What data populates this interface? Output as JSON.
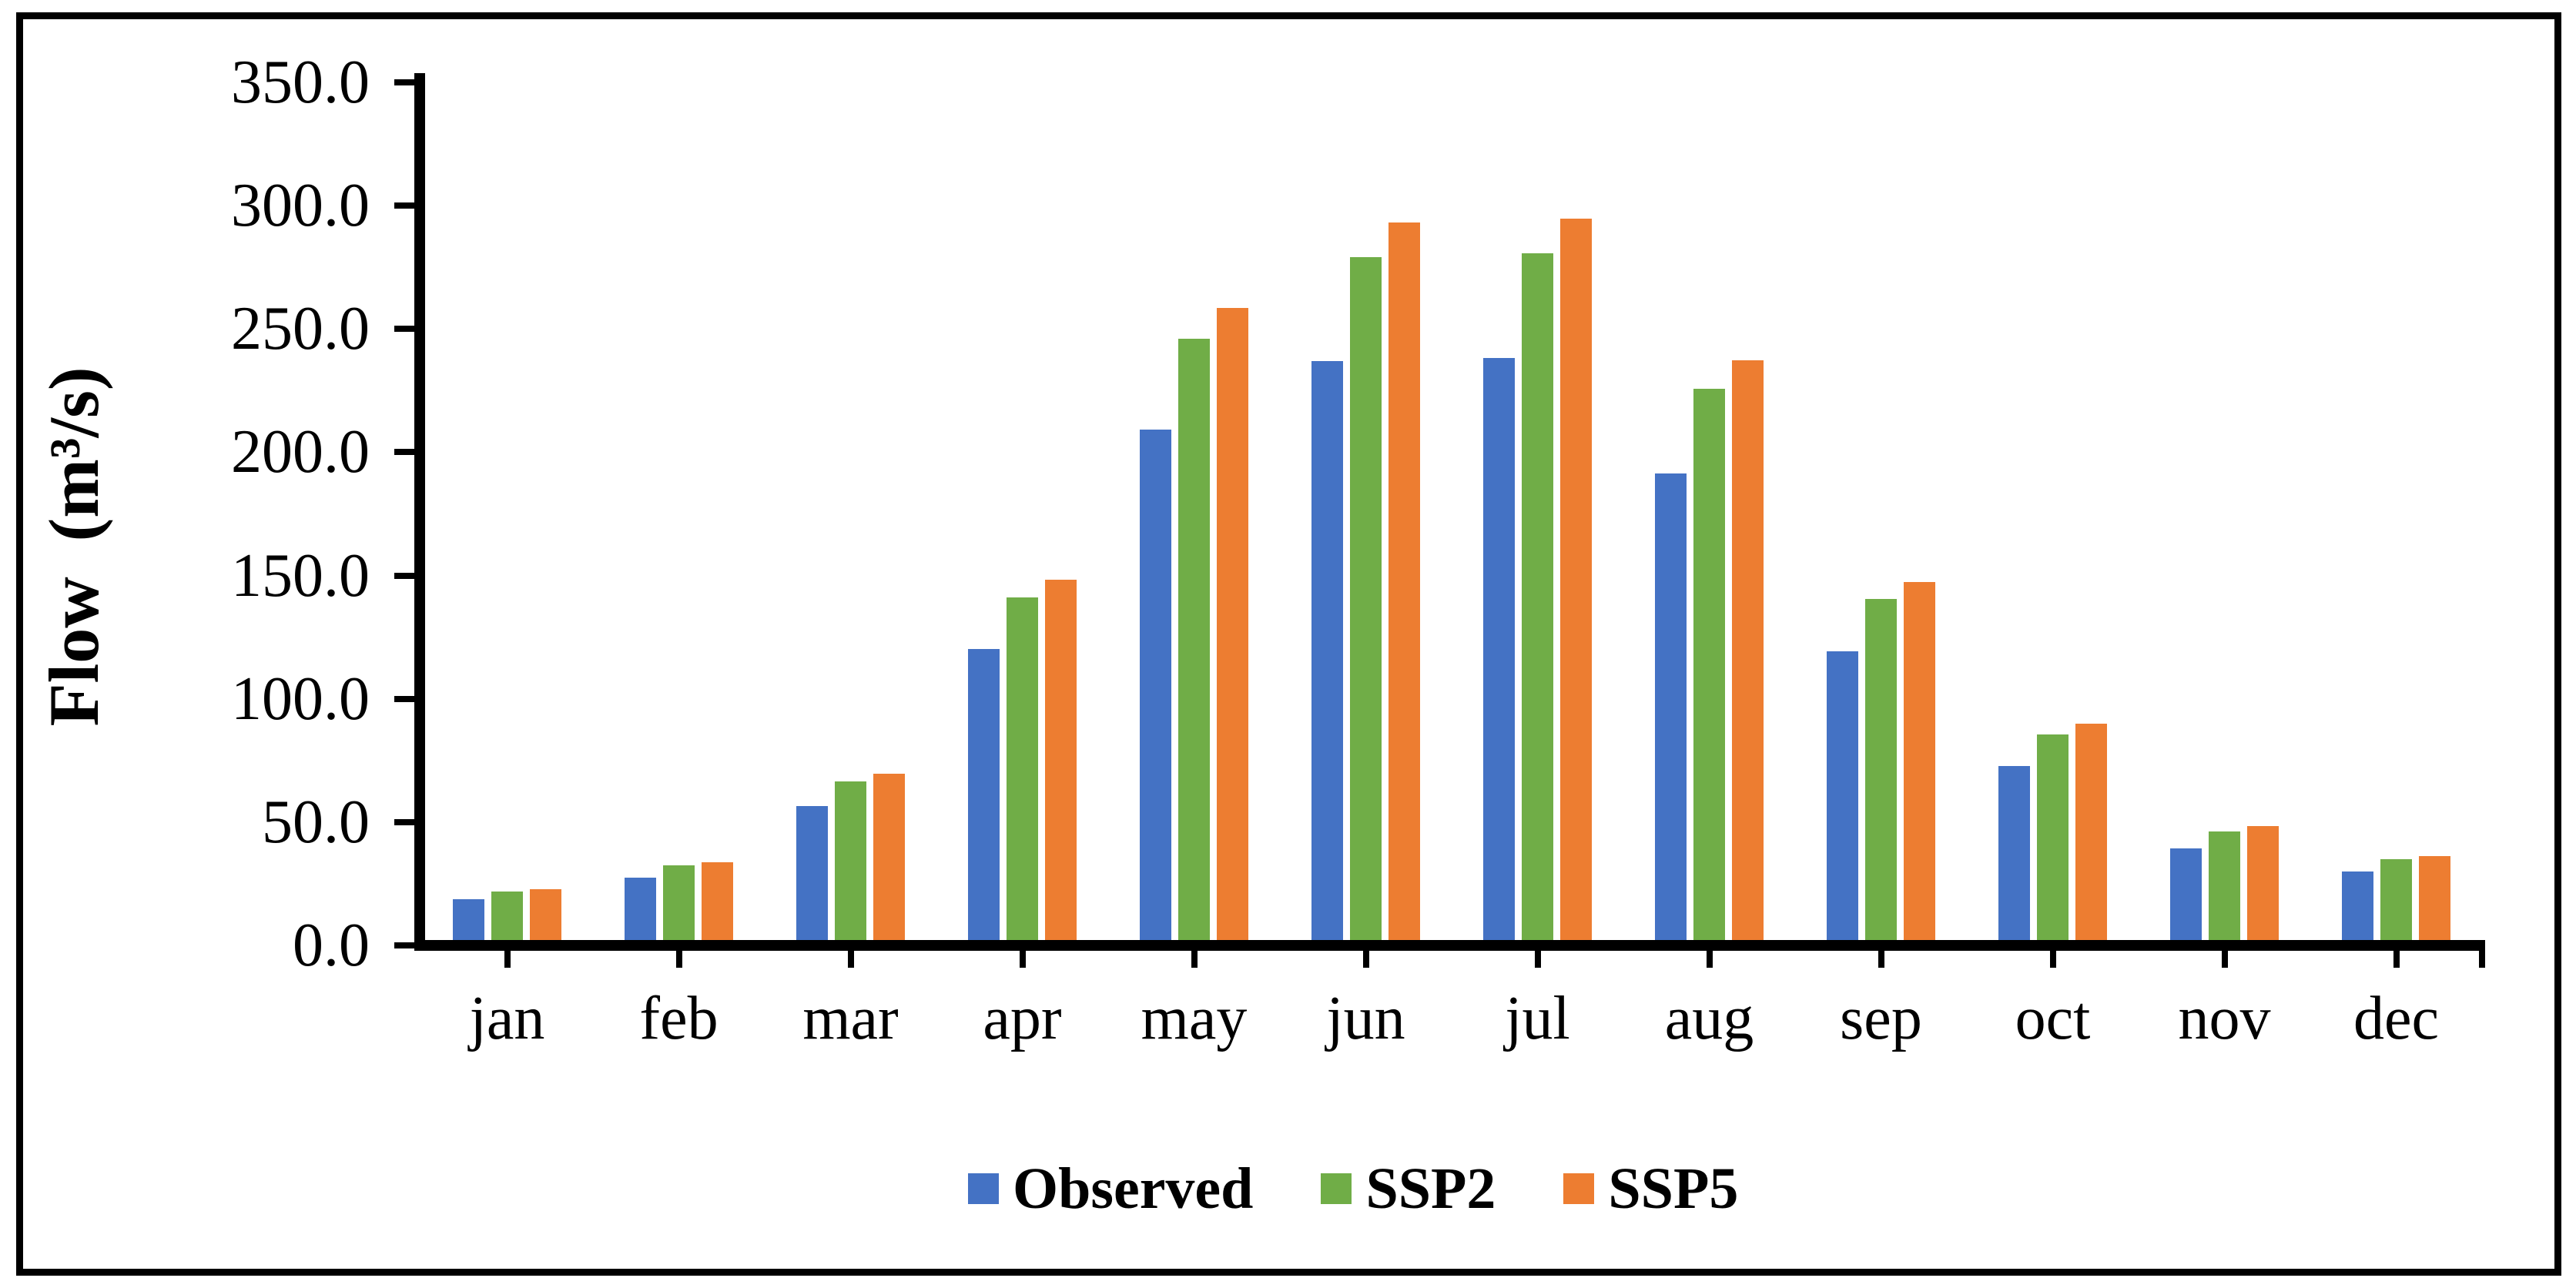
{
  "chart_data": {
    "type": "bar",
    "categories": [
      "jan",
      "feb",
      "mar",
      "apr",
      "may",
      "jun",
      "jul",
      "aug",
      "sep",
      "oct",
      "nov",
      "dec"
    ],
    "series": [
      {
        "name": "Observed",
        "color": "#4472C4",
        "values": [
          16.5,
          25.2,
          54.4,
          118.0,
          207.2,
          234.9,
          236.4,
          189.5,
          117.3,
          70.6,
          37.3,
          27.7
        ]
      },
      {
        "name": "SSP2",
        "color": "#70AD47",
        "values": [
          19.6,
          30.2,
          64.4,
          139.1,
          244.2,
          277.2,
          278.8,
          223.7,
          138.5,
          83.4,
          44.2,
          32.7
        ]
      },
      {
        "name": "SSP5",
        "color": "#ED7D31",
        "values": [
          20.5,
          31.5,
          67.5,
          146.2,
          256.7,
          291.2,
          292.8,
          235.2,
          145.3,
          87.7,
          46.4,
          34.2
        ]
      }
    ],
    "title": "",
    "xlabel": "",
    "ylabel": "Flow  (m³/s)",
    "ylim": [
      0,
      350
    ],
    "ytick_step": 50,
    "ytick_labels": [
      "0.0",
      "50.0",
      "100.0",
      "150.0",
      "200.0",
      "250.0",
      "300.0",
      "350.0"
    ],
    "grid": false,
    "legend_position": "bottom"
  },
  "colors": {
    "axis": "#000000",
    "frame_border": "#000000",
    "background": "#ffffff",
    "observed": "#4472C4",
    "ssp2": "#70AD47",
    "ssp5": "#ED7D31"
  }
}
